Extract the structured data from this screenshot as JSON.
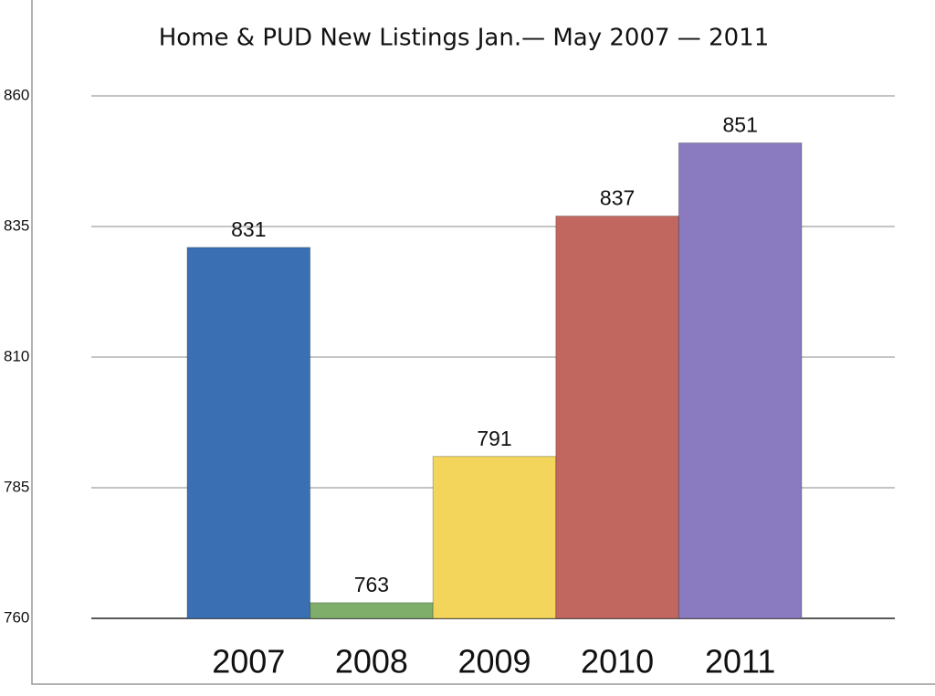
{
  "chart_data": {
    "type": "bar",
    "title": "Home & PUD New Listings Jan.— May 2007 — 2011",
    "categories": [
      "2007",
      "2008",
      "2009",
      "2010",
      "2011"
    ],
    "values": [
      831,
      763,
      791,
      837,
      851
    ],
    "colors": [
      "#3a6fb3",
      "#7fae6a",
      "#f2d55a",
      "#c2675f",
      "#8a7ac0"
    ],
    "ylim": [
      760,
      860
    ],
    "yticks": [
      760,
      785,
      810,
      835,
      860
    ],
    "grid": true
  }
}
